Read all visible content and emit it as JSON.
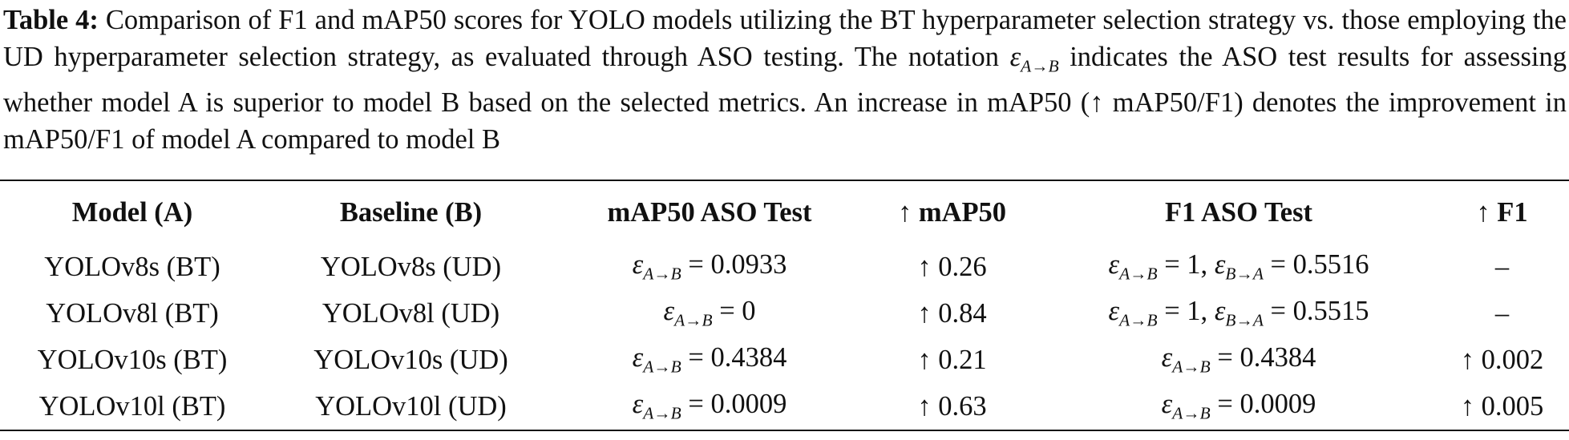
{
  "caption": [
    {
      "b": "Table 4:"
    },
    {
      "t": " Comparison of F1 and mAP50 scores for YOLO models utilizing the BT hyperparameter selection strategy vs. those employing the UD hyperparameter selection strategy, as evaluated through ASO testing. The notation "
    },
    {
      "i": "ε"
    },
    {
      "sub": "A→B"
    },
    {
      "t": " indicates the ASO test results for assessing whether model A is superior to model B based on the selected metrics. An increase in mAP50 (↑ mAP50/F1) denotes the improvement in mAP50/F1 of model A compared to model B"
    }
  ],
  "table": {
    "header": [
      "Model (A)",
      "Baseline (B)",
      "mAP50 ASO Test",
      "↑ mAP50",
      "F1 ASO Test",
      "↑ F1"
    ],
    "rows": [
      [
        [
          {
            "t": "YOLOv8s (BT)"
          }
        ],
        [
          {
            "t": "YOLOv8s (UD)"
          }
        ],
        [
          {
            "i": "ε"
          },
          {
            "sub": "A→B"
          },
          {
            "t": " = 0.0933"
          }
        ],
        [
          {
            "t": "↑ 0.26"
          }
        ],
        [
          {
            "i": "ε"
          },
          {
            "sub": "A→B"
          },
          {
            "t": " = 1, "
          },
          {
            "i": "ε"
          },
          {
            "sub": "B→A"
          },
          {
            "t": " = 0.5516"
          }
        ],
        [
          {
            "t": "–"
          }
        ]
      ],
      [
        [
          {
            "t": "YOLOv8l (BT)"
          }
        ],
        [
          {
            "t": "YOLOv8l (UD)"
          }
        ],
        [
          {
            "i": "ε"
          },
          {
            "sub": "A→B"
          },
          {
            "t": " = 0"
          }
        ],
        [
          {
            "t": "↑ 0.84"
          }
        ],
        [
          {
            "i": "ε"
          },
          {
            "sub": "A→B"
          },
          {
            "t": " = 1, "
          },
          {
            "i": "ε"
          },
          {
            "sub": "B→A"
          },
          {
            "t": " = 0.5515"
          }
        ],
        [
          {
            "t": "–"
          }
        ]
      ],
      [
        [
          {
            "t": "YOLOv10s (BT)"
          }
        ],
        [
          {
            "t": "YOLOv10s (UD)"
          }
        ],
        [
          {
            "i": "ε"
          },
          {
            "sub": "A→B"
          },
          {
            "t": " = 0.4384"
          }
        ],
        [
          {
            "t": "↑ 0.21"
          }
        ],
        [
          {
            "i": "ε"
          },
          {
            "sub": "A→B"
          },
          {
            "t": " = 0.4384"
          }
        ],
        [
          {
            "t": "↑ 0.002"
          }
        ]
      ],
      [
        [
          {
            "t": "YOLOv10l (BT)"
          }
        ],
        [
          {
            "t": "YOLOv10l (UD)"
          }
        ],
        [
          {
            "i": "ε"
          },
          {
            "sub": "A→B"
          },
          {
            "t": " = 0.0009"
          }
        ],
        [
          {
            "t": "↑ 0.63"
          }
        ],
        [
          {
            "i": "ε"
          },
          {
            "sub": "A→B"
          },
          {
            "t": " = 0.0009"
          }
        ],
        [
          {
            "t": "↑ 0.005"
          }
        ]
      ]
    ]
  }
}
